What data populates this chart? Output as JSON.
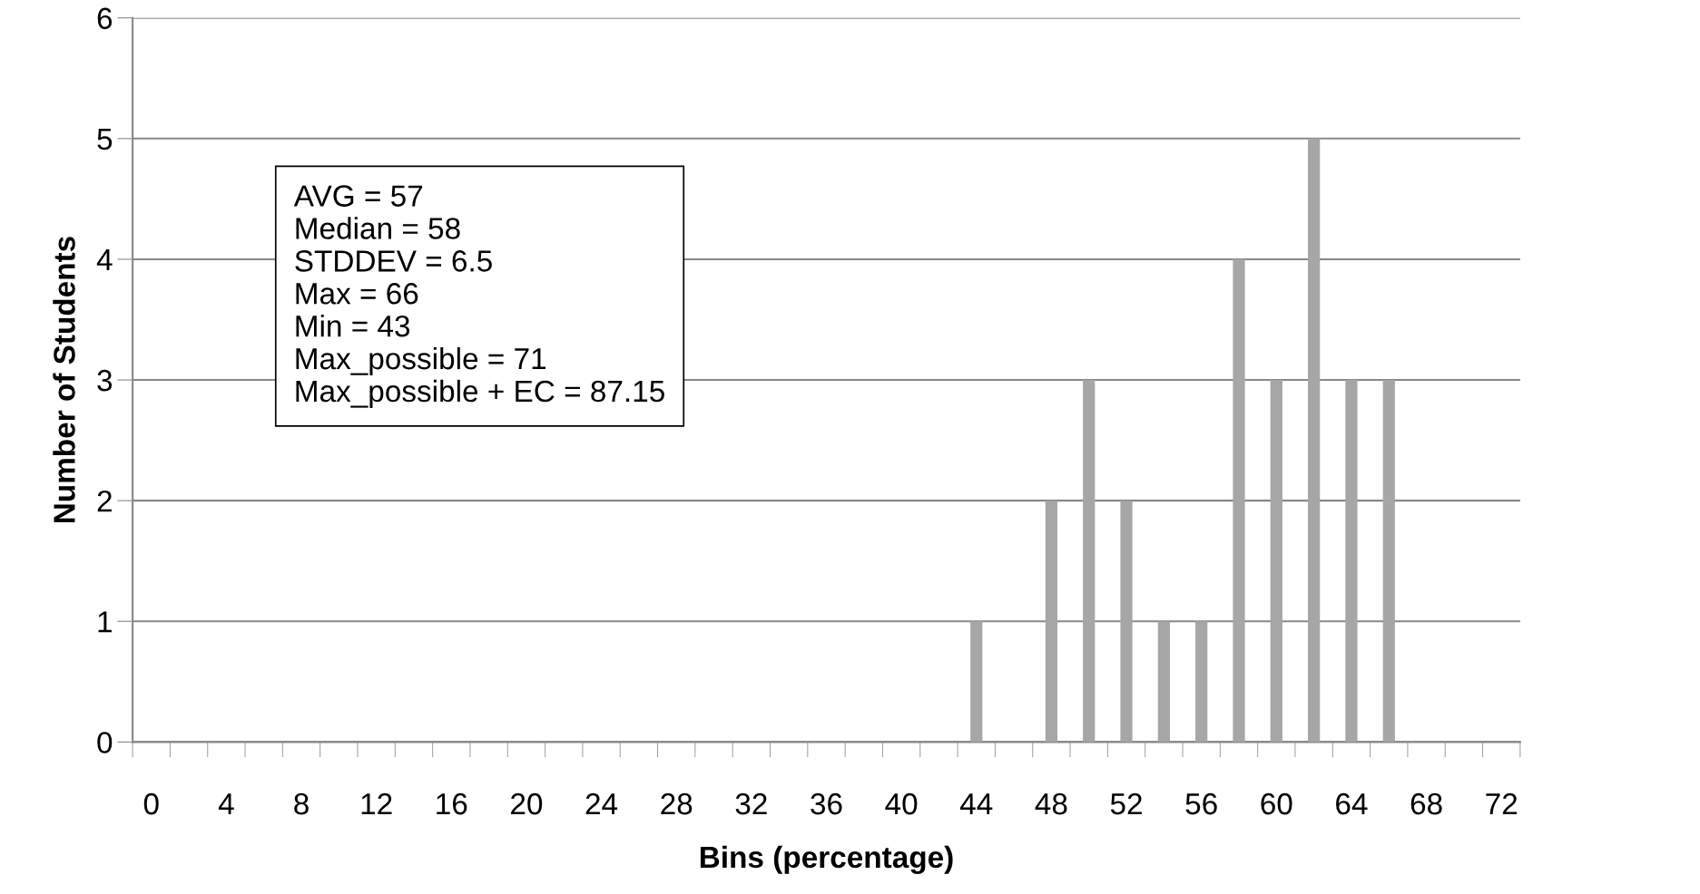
{
  "chart_data": {
    "type": "bar",
    "xlabel": "Bins (percentage)",
    "ylabel": "Number of Students",
    "categories": [
      "0",
      null,
      "4",
      null,
      "8",
      null,
      "12",
      null,
      "16",
      null,
      "20",
      null,
      "24",
      null,
      "28",
      null,
      "32",
      null,
      "36",
      null,
      "40",
      null,
      "44",
      null,
      "48",
      null,
      "52",
      null,
      "56",
      null,
      "60",
      null,
      "64",
      null,
      "68",
      null,
      "72"
    ],
    "values": [
      0,
      0,
      0,
      0,
      0,
      0,
      0,
      0,
      0,
      0,
      0,
      0,
      0,
      0,
      0,
      0,
      0,
      0,
      0,
      0,
      0,
      0,
      1,
      0,
      2,
      3,
      2,
      1,
      1,
      4,
      3,
      5,
      3,
      3,
      0,
      0,
      0
    ],
    "color": "#a6a6a6",
    "ylim": [
      0,
      6
    ],
    "yticks": [
      0,
      1,
      2,
      3,
      4,
      5,
      6
    ],
    "grid": "y",
    "legend": false,
    "annotations": [
      "AVG = 57",
      "Median = 58",
      "STDDEV = 6.5",
      "Max = 66",
      "Min = 43",
      "Max_possible = 71",
      "Max_possible + EC = 87.15"
    ]
  }
}
